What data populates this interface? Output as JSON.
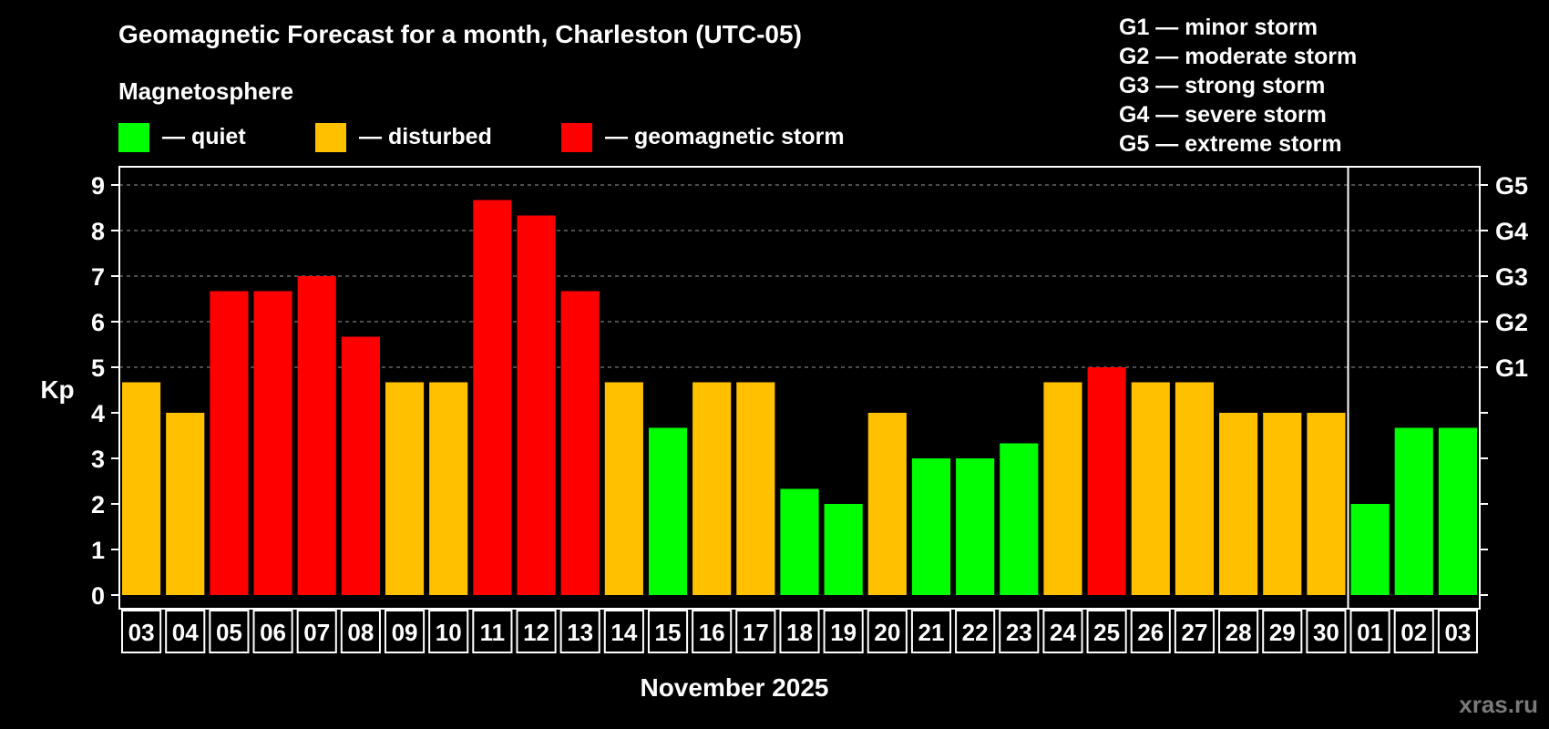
{
  "chart_data": {
    "type": "bar",
    "title": "Geomagnetic Forecast for a month, Charleston (UTC-05)",
    "xlabel": "November 2025",
    "ylabel": "Kp",
    "ylim": [
      0,
      9
    ],
    "yticks": [
      "0",
      "1",
      "2",
      "3",
      "4",
      "5",
      "6",
      "7",
      "8",
      "9"
    ],
    "right_axis_labels": [
      {
        "label": "G1",
        "kp": 5
      },
      {
        "label": "G2",
        "kp": 6
      },
      {
        "label": "G3",
        "kp": 7
      },
      {
        "label": "G4",
        "kp": 8
      },
      {
        "label": "G5",
        "kp": 9
      }
    ],
    "categories": [
      "03",
      "04",
      "05",
      "06",
      "07",
      "08",
      "09",
      "10",
      "11",
      "12",
      "13",
      "14",
      "15",
      "16",
      "17",
      "18",
      "19",
      "20",
      "21",
      "22",
      "23",
      "24",
      "25",
      "26",
      "27",
      "28",
      "29",
      "30",
      "01",
      "02",
      "03"
    ],
    "values": [
      4.67,
      4,
      6.67,
      6.67,
      7,
      5.67,
      4.67,
      4.67,
      8.67,
      8.33,
      6.67,
      4.67,
      3.67,
      4.67,
      4.67,
      2.33,
      2,
      4,
      3,
      3,
      3.33,
      4.67,
      5,
      4.67,
      4.67,
      4,
      4,
      4,
      2,
      3.67,
      3.67
    ],
    "levels": [
      "disturbed",
      "disturbed",
      "storm",
      "storm",
      "storm",
      "storm",
      "disturbed",
      "disturbed",
      "storm",
      "storm",
      "storm",
      "disturbed",
      "quiet",
      "disturbed",
      "disturbed",
      "quiet",
      "quiet",
      "disturbed",
      "quiet",
      "quiet",
      "quiet",
      "disturbed",
      "storm",
      "disturbed",
      "disturbed",
      "disturbed",
      "disturbed",
      "disturbed",
      "quiet",
      "quiet",
      "quiet"
    ],
    "month_break_after_index": 27,
    "grid": true,
    "legend": {
      "heading": "Magnetosphere",
      "items": [
        {
          "key": "quiet",
          "label": "— quiet",
          "color": "#00FF00"
        },
        {
          "key": "disturbed",
          "label": "— disturbed",
          "color": "#FFC000"
        },
        {
          "key": "storm",
          "label": "— geomagnetic storm",
          "color": "#FF0000"
        }
      ]
    },
    "storm_scale": [
      "G1 — minor storm",
      "G2 — moderate storm",
      "G3 — strong storm",
      "G4 — severe storm",
      "G5 — extreme storm"
    ]
  },
  "watermark": "xras.ru"
}
